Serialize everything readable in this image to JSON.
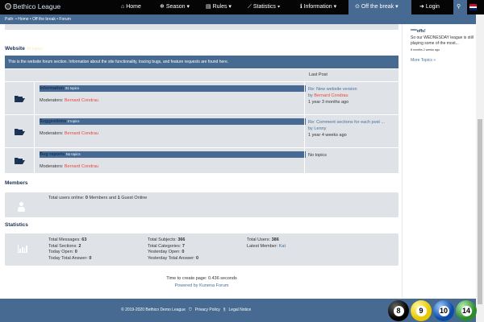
{
  "nav": {
    "brand": "Bethico League",
    "items": [
      {
        "icon": "home-icon",
        "label": "Home"
      },
      {
        "icon": "season-icon",
        "label": "Season"
      },
      {
        "icon": "rules-icon",
        "label": "Rules"
      },
      {
        "icon": "chart-icon",
        "label": "Statistics"
      },
      {
        "icon": "info-icon",
        "label": "Information"
      },
      {
        "icon": "clock-icon",
        "label": "Off the break"
      },
      {
        "icon": "login-icon",
        "label": "Login"
      }
    ]
  },
  "path": "Path: • Home • Off the break • Forum",
  "section": {
    "title": "Website",
    "count": "34 topics",
    "description": "This is the website forum section. Information about the site functionality, tracing bugs, and feature requests are found here.",
    "last_post_header": "Last Post",
    "categories": [
      {
        "name": "Information",
        "count": "31 topics",
        "moderators_label": "Moderators:",
        "moderator": "Bernard Condrau",
        "last_title": "Re: New website version",
        "by": "by",
        "last_by": "Bernard Condrau",
        "last_time": "1 year 3 months ago"
      },
      {
        "name": "Suggestions",
        "count": "3 topics",
        "moderators_label": "Moderators:",
        "moderator": "Bernard Condrau",
        "last_title": "Re: Comment sections for each post ...",
        "by": "by",
        "last_by": "Lenny",
        "last_time": "1 year 4 weeks ago"
      },
      {
        "name": "Bug reports",
        "count": "No topics",
        "moderators_label": "Moderators:",
        "moderator": "Bernard Condrau",
        "last_title": "No topics"
      }
    ]
  },
  "members": {
    "title": "Members",
    "pre": "Total users online:",
    "members": "0",
    "mid": "Members and",
    "guests": "1",
    "post": "Guest Online"
  },
  "statistics": {
    "title": "Statistics",
    "items": [
      [
        "Total Messages:",
        "63"
      ],
      [
        "Total Sections:",
        "2"
      ],
      [
        "Today Open:",
        "0"
      ],
      [
        "Today Total Answer:",
        "0"
      ],
      [
        "Total Subjects:",
        "366"
      ],
      [
        "Total Categories:",
        "7"
      ],
      [
        "Yesterday Open:",
        "0"
      ],
      [
        "Yesterday Total Answer:",
        "0"
      ],
      [
        "Total Users:",
        "386"
      ],
      [
        "Latest Member:",
        "Kat"
      ]
    ]
  },
  "footer_info": {
    "time": "Time to create page: 0.436 seconds",
    "powered": "Powered by Kunena Forum"
  },
  "sidebar": {
    "title": "****offs!",
    "text": "So our WEDNESDAY league is still playing some of the most...",
    "time": "8 months 2 weeks ago",
    "more": "More Topics »"
  },
  "footer": {
    "copyright": "© 2019-2020 Bethico Demo League",
    "privacy": "Privacy Policy",
    "legal": "Legal Notice",
    "balls": [
      "8",
      "9",
      "10",
      "14"
    ]
  },
  "colors": {
    "accent": "#466a91",
    "nav": "#050505",
    "moderator": "#e8473c"
  }
}
